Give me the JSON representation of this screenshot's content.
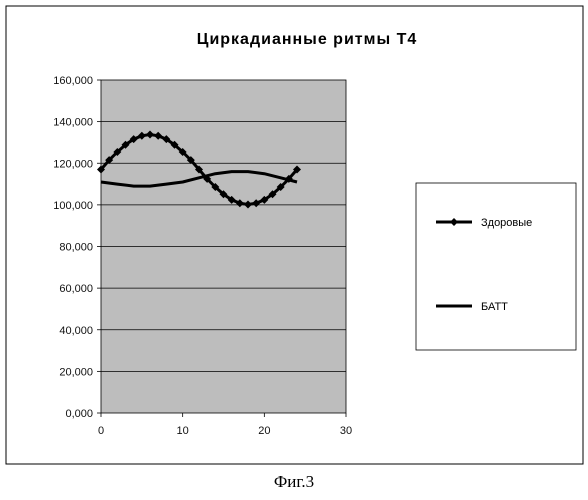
{
  "chart_data": {
    "type": "line",
    "title": "Циркадианные ритмы Т4",
    "xlabel": "",
    "ylabel": "",
    "xlim": [
      0,
      30
    ],
    "ylim": [
      0,
      160000
    ],
    "x_ticks": [
      "0",
      "10",
      "20",
      "30"
    ],
    "y_ticks": [
      "0,000",
      "20,000",
      "40,000",
      "60,000",
      "80,000",
      "100,000",
      "120,000",
      "140,000",
      "160,000"
    ],
    "grid": "horizontal",
    "legend_position": "right",
    "series": [
      {
        "name": "Здоровые",
        "color": "#000000",
        "marker": "diamond",
        "x": [
          0,
          1,
          2,
          3,
          4,
          5,
          6,
          7,
          8,
          9,
          10,
          11,
          12,
          13,
          14,
          15,
          16,
          17,
          18,
          19,
          20,
          21,
          22,
          23,
          24
        ],
        "y": [
          117000,
          121500,
          125400,
          128900,
          131600,
          133200,
          133800,
          133200,
          131600,
          128900,
          125400,
          121500,
          117000,
          112500,
          108600,
          105100,
          102400,
          100800,
          100200,
          100800,
          102400,
          105100,
          108600,
          112500,
          117000
        ]
      },
      {
        "name": "БАТТ",
        "color": "#000000",
        "marker": "none",
        "x": [
          0,
          2,
          4,
          6,
          8,
          10,
          12,
          14,
          16,
          18,
          20,
          22,
          24
        ],
        "y": [
          111000,
          110000,
          109000,
          109000,
          110000,
          111000,
          113000,
          115000,
          116000,
          116000,
          115000,
          113000,
          111000
        ]
      }
    ]
  },
  "caption": "Фиг.3"
}
